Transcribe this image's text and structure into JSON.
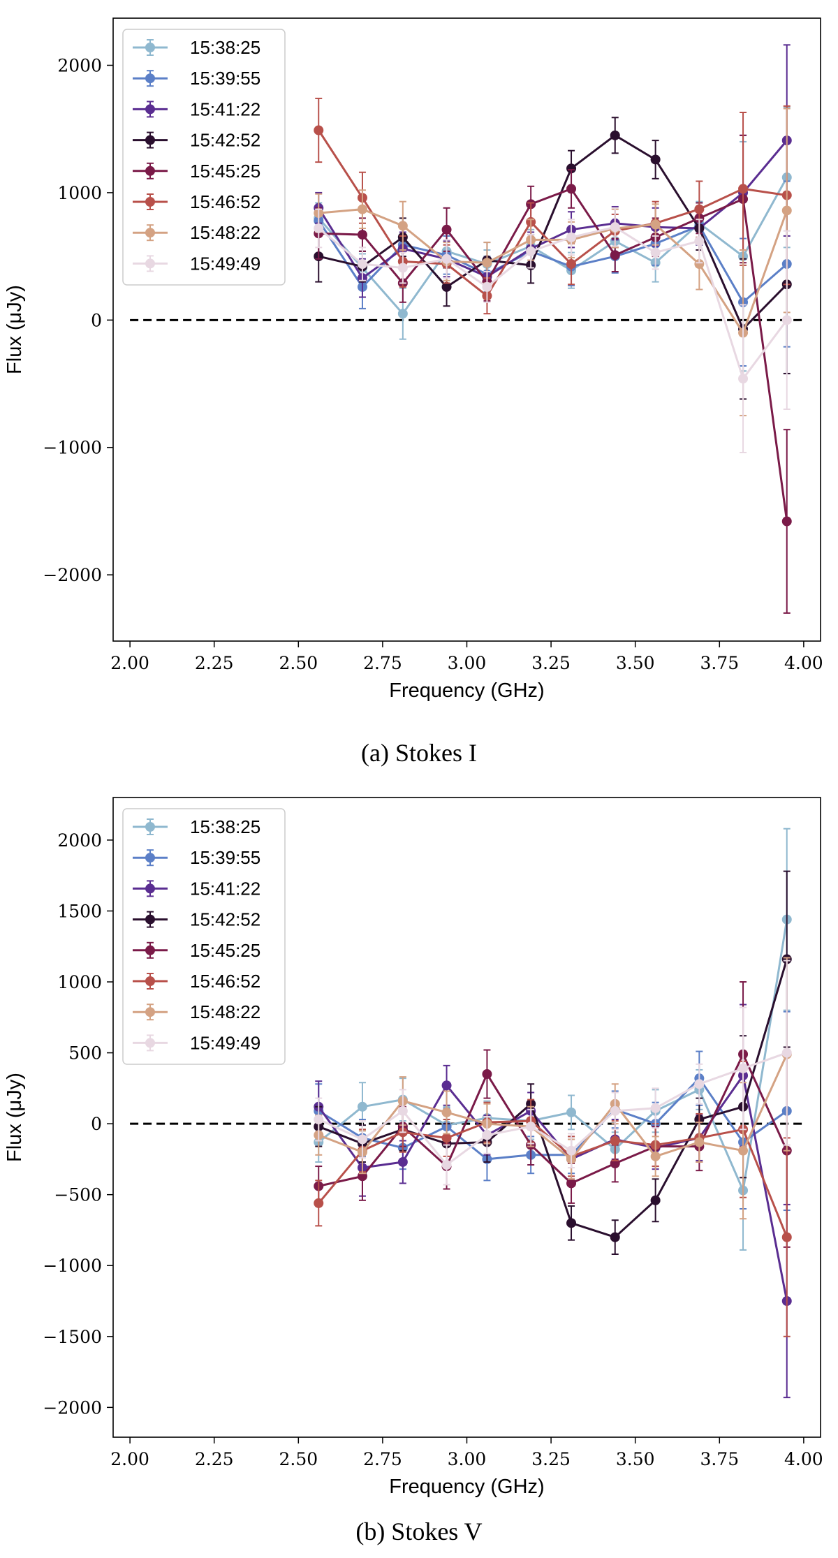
{
  "x_ticks": [
    "2.00",
    "2.25",
    "2.50",
    "2.75",
    "3.00",
    "3.25",
    "3.50",
    "3.75",
    "4.00"
  ],
  "legend": [
    {
      "name": "15:38:25",
      "color": "#8fb8cf"
    },
    {
      "name": "15:39:55",
      "color": "#5b7fc7"
    },
    {
      "name": "15:41:22",
      "color": "#5a2d91"
    },
    {
      "name": "15:42:52",
      "color": "#2a0f2e"
    },
    {
      "name": "15:45:25",
      "color": "#7a1a48"
    },
    {
      "name": "15:46:52",
      "color": "#b8504a"
    },
    {
      "name": "15:48:22",
      "color": "#d4a283"
    },
    {
      "name": "15:49:49",
      "color": "#e8d8e2"
    }
  ],
  "chart_data": [
    {
      "type": "line",
      "title": "",
      "caption": "(a) Stokes I",
      "xlabel": "Frequency (GHz)",
      "ylabel": "Flux (μJy)",
      "xlim": [
        1.95,
        4.05
      ],
      "ylim": [
        -2520,
        2370
      ],
      "yticks": [
        -2000,
        -1000,
        0,
        1000,
        2000
      ],
      "yticks_labels": [
        "−2000",
        "−1000",
        "0",
        "1000",
        "2000"
      ],
      "x_ticks_values": [
        2.0,
        2.25,
        2.5,
        2.75,
        3.0,
        3.25,
        3.5,
        3.75,
        4.0
      ],
      "reference_line": 0,
      "legend_position": "upper-left",
      "x": [
        2.56,
        2.69,
        2.81,
        2.94,
        3.06,
        3.19,
        3.31,
        3.44,
        3.56,
        3.69,
        3.82,
        3.95
      ],
      "series": [
        {
          "name": "15:38:25",
          "values": [
            800,
            410,
            50,
            540,
            440,
            580,
            390,
            620,
            450,
            760,
            500,
            1120
          ],
          "errors": [
            120,
            110,
            200,
            120,
            110,
            130,
            140,
            130,
            150,
            170,
            900,
            550
          ]
        },
        {
          "name": "15:39:55",
          "values": [
            780,
            260,
            590,
            510,
            360,
            540,
            420,
            500,
            600,
            740,
            140,
            440
          ],
          "errors": [
            120,
            170,
            130,
            150,
            140,
            130,
            150,
            130,
            170,
            120,
            500,
            650
          ]
        },
        {
          "name": "15:41:22",
          "values": [
            880,
            330,
            560,
            480,
            340,
            560,
            710,
            760,
            730,
            720,
            1000,
            1410
          ],
          "errors": [
            120,
            150,
            130,
            140,
            130,
            130,
            140,
            130,
            150,
            130,
            450,
            750
          ]
        },
        {
          "name": "15:42:52",
          "values": [
            500,
            420,
            650,
            260,
            470,
            430,
            1190,
            1450,
            1260,
            720,
            -70,
            280
          ],
          "errors": [
            200,
            120,
            150,
            150,
            140,
            140,
            140,
            140,
            150,
            170,
            550,
            700
          ]
        },
        {
          "name": "15:45:25",
          "values": [
            680,
            670,
            290,
            710,
            300,
            910,
            1030,
            510,
            650,
            800,
            950,
            -1580
          ],
          "errors": [
            200,
            130,
            150,
            170,
            150,
            140,
            150,
            130,
            150,
            120,
            500,
            720
          ]
        },
        {
          "name": "15:46:52",
          "values": [
            1490,
            960,
            460,
            440,
            190,
            770,
            440,
            700,
            760,
            870,
            1030,
            980
          ],
          "errors": [
            250,
            200,
            200,
            150,
            140,
            150,
            160,
            130,
            170,
            220,
            600,
            700
          ]
        },
        {
          "name": "15:48:22",
          "values": [
            840,
            870,
            740,
            460,
            450,
            630,
            630,
            720,
            750,
            440,
            -100,
            860
          ],
          "errors": [
            150,
            150,
            190,
            150,
            160,
            160,
            140,
            150,
            160,
            200,
            650,
            800
          ]
        },
        {
          "name": "15:49:49",
          "values": [
            720,
            440,
            410,
            480,
            260,
            540,
            650,
            730,
            530,
            620,
            -460,
            0
          ],
          "errors": [
            150,
            130,
            120,
            150,
            120,
            130,
            140,
            150,
            130,
            170,
            580,
            700
          ]
        }
      ]
    },
    {
      "type": "line",
      "title": "",
      "caption": "(b) Stokes V",
      "xlabel": "Frequency (GHz)",
      "ylabel": "Flux (μJy)",
      "xlim": [
        1.95,
        4.05
      ],
      "ylim": [
        -2210,
        2300
      ],
      "yticks": [
        -2000,
        -1500,
        -1000,
        -500,
        0,
        500,
        1000,
        1500,
        2000
      ],
      "yticks_labels": [
        "−2000",
        "−1500",
        "−1000",
        "−500",
        "0",
        "500",
        "1000",
        "1500",
        "2000"
      ],
      "x_ticks_values": [
        2.0,
        2.25,
        2.5,
        2.75,
        3.0,
        3.25,
        3.5,
        3.75,
        4.0
      ],
      "reference_line": 0,
      "legend_position": "upper-left",
      "x": [
        2.56,
        2.69,
        2.81,
        2.94,
        3.06,
        3.19,
        3.31,
        3.44,
        3.56,
        3.69,
        3.82,
        3.95
      ],
      "series": [
        {
          "name": "15:38:25",
          "values": [
            -130,
            120,
            170,
            -10,
            40,
            20,
            80,
            -180,
            90,
            240,
            -470,
            1440
          ],
          "errors": [
            140,
            170,
            150,
            130,
            120,
            130,
            120,
            120,
            150,
            140,
            420,
            640
          ]
        },
        {
          "name": "15:39:55",
          "values": [
            90,
            -100,
            -170,
            -20,
            -250,
            -220,
            -220,
            100,
            0,
            320,
            -130,
            90
          ],
          "errors": [
            190,
            130,
            150,
            130,
            150,
            130,
            130,
            130,
            150,
            190,
            470,
            700
          ]
        },
        {
          "name": "15:41:22",
          "values": [
            120,
            -310,
            -270,
            270,
            -80,
            90,
            -250,
            -110,
            -170,
            -100,
            340,
            -1250
          ],
          "errors": [
            180,
            200,
            150,
            140,
            140,
            130,
            140,
            140,
            150,
            160,
            500,
            680
          ]
        },
        {
          "name": "15:42:52",
          "values": [
            -20,
            -140,
            -40,
            -140,
            -130,
            140,
            -700,
            -800,
            -540,
            30,
            120,
            1160
          ],
          "errors": [
            140,
            130,
            150,
            140,
            140,
            140,
            120,
            120,
            150,
            150,
            500,
            620
          ]
        },
        {
          "name": "15:45:25",
          "values": [
            -440,
            -370,
            -20,
            -300,
            350,
            -150,
            -420,
            -280,
            -160,
            -160,
            490,
            -190
          ],
          "errors": [
            140,
            170,
            140,
            160,
            170,
            140,
            140,
            130,
            140,
            170,
            510,
            680
          ]
        },
        {
          "name": "15:46:52",
          "values": [
            -560,
            -190,
            -60,
            -100,
            10,
            20,
            -230,
            -120,
            -150,
            -100,
            -40,
            -800
          ],
          "errors": [
            160,
            150,
            140,
            130,
            140,
            150,
            140,
            140,
            150,
            170,
            480,
            700
          ]
        },
        {
          "name": "15:48:22",
          "values": [
            -80,
            -200,
            160,
            80,
            0,
            -20,
            -250,
            140,
            -230,
            -130,
            -190,
            490
          ],
          "errors": [
            140,
            150,
            170,
            150,
            140,
            140,
            140,
            140,
            140,
            140,
            480,
            680
          ]
        },
        {
          "name": "15:49:49",
          "values": [
            30,
            -110,
            90,
            -290,
            -80,
            -20,
            -190,
            90,
            110,
            280,
            390,
            500
          ],
          "errors": [
            150,
            130,
            150,
            140,
            130,
            120,
            120,
            130,
            140,
            140,
            430,
            650
          ]
        }
      ]
    }
  ]
}
